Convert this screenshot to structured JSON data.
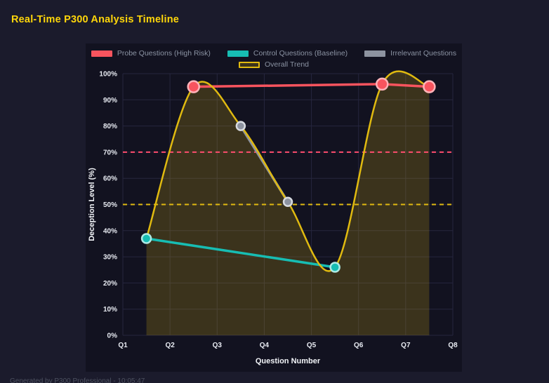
{
  "page": {
    "title": "Real-Time P300 Analysis Timeline",
    "footer": "Generated by P300 Professional - 10:05:47",
    "colors": {
      "background": "#1b1b2c",
      "panel": "#121220",
      "title": "#ffd60a",
      "grid": "#26263e",
      "tick_text": "#e8ebf2",
      "axis_title_text": "#f2f4f8",
      "legend_text": "#8b93a3"
    }
  },
  "chart_data": {
    "type": "line",
    "title": "Real-Time P300 Analysis Timeline",
    "xlabel": "Question Number",
    "ylabel": "Deception Level (%)",
    "x_ticks": [
      "Q1",
      "Q2",
      "Q3",
      "Q4",
      "Q5",
      "Q6",
      "Q7",
      "Q8"
    ],
    "x_range": [
      1,
      8
    ],
    "ylim": [
      0,
      100
    ],
    "y_tick_step": 10,
    "y_tick_suffix": "%",
    "grid": true,
    "legend_position": "top",
    "legend_rows": [
      [
        "Probe Questions (High Risk)",
        "Control Questions (Baseline)",
        "Irrelevant Questions"
      ],
      [
        "Overall Trend"
      ]
    ],
    "series": [
      {
        "name": "Probe Questions (High Risk)",
        "color": "#f8545e",
        "marker_stroke": "#ffb3b9",
        "marker_radius": 8,
        "width": 3.5,
        "x": [
          2.5,
          6.5,
          7.5
        ],
        "y": [
          95,
          96,
          95
        ]
      },
      {
        "name": "Control Questions (Baseline)",
        "color": "#17bdb3",
        "marker_stroke": "#aeeae5",
        "marker_radius": 6.5,
        "width": 3.5,
        "x": [
          1.5,
          5.5
        ],
        "y": [
          37,
          26
        ]
      },
      {
        "name": "Irrelevant Questions",
        "color": "#8d93a0",
        "marker_stroke": "#d8dbe1",
        "marker_radius": 6,
        "width": 3.5,
        "x": [
          3.5,
          4.5
        ],
        "y": [
          80,
          51
        ]
      },
      {
        "name": "Overall Trend",
        "color": "#e0ba10",
        "width": 2.5,
        "smooth": true,
        "fill": "rgba(224,186,16,0.20)",
        "x": [
          1.5,
          2.5,
          3.5,
          4.5,
          5.5,
          6.5,
          7.5
        ],
        "y": [
          37,
          95,
          80,
          51,
          26,
          96,
          95
        ]
      }
    ],
    "reference_lines": [
      {
        "y": 70,
        "color": "#ff4d6d",
        "style": "dashed"
      },
      {
        "y": 50,
        "color": "#e0ba10",
        "style": "dashed"
      }
    ]
  }
}
